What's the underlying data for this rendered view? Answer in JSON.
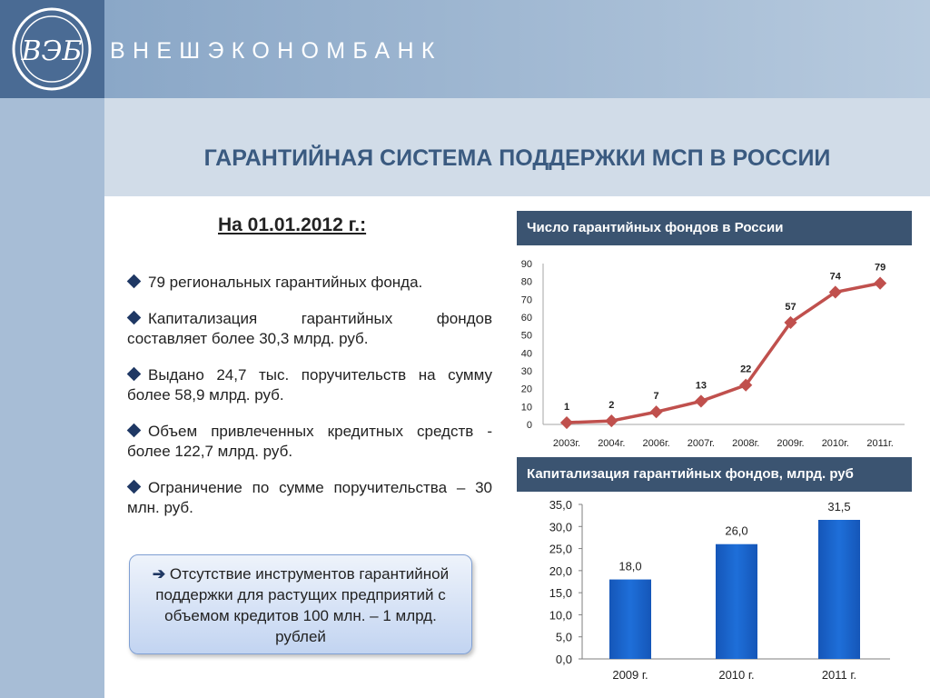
{
  "header": {
    "logo_text": "ВЭБ",
    "bank_name": "ВНЕШЭКОНОМБАНК"
  },
  "title": "ГАРАНТИЙНАЯ СИСТЕМА ПОДДЕРЖКИ МСП В РОССИИ",
  "left": {
    "date_heading": "На 01.01.2012 г.:",
    "bullets": [
      "79 региональных гарантийных фонда.",
      "Капитализация гарантийных фондов составляет более 30,3 млрд. руб.",
      "Выдано 24,7 тыс. поручительств на сумму более 58,9 млрд. руб.",
      "Объем привлеченных кредитных средств - более 122,7 млрд. руб.",
      "Ограничение по сумме поручительства – 30 млн. руб."
    ],
    "callout": {
      "arrow": "➔",
      "text": "Отсутствие инструментов гарантийной поддержки для растущих предприятий с объемом кредитов 100 млн. – 1 млрд. рублей"
    }
  },
  "colors": {
    "line": "#c0504d",
    "bar": "#1e6fd9",
    "header_band": "#3b5471",
    "title": "#3a5a80"
  },
  "chart_data": [
    {
      "type": "line",
      "title": "Число гарантийных фондов в России",
      "categories": [
        "2003г.",
        "2004г.",
        "2006г.",
        "2007г.",
        "2008г.",
        "2009г.",
        "2010г.",
        "2011г."
      ],
      "values": [
        1,
        2,
        7,
        13,
        22,
        57,
        74,
        79
      ],
      "data_labels": [
        "1",
        "2",
        "7",
        "13",
        "22",
        "57",
        "74",
        "79"
      ],
      "y_ticks": [
        "0",
        "10",
        "20",
        "30",
        "40",
        "50",
        "60",
        "70",
        "80",
        "90"
      ],
      "ylim": [
        0,
        90
      ],
      "grid": false,
      "legend": "none"
    },
    {
      "type": "bar",
      "title": "Капитализация гарантийных фондов, млрд. руб",
      "categories": [
        "2009 г.",
        "2010 г.",
        "2011 г."
      ],
      "values": [
        18.0,
        26.0,
        31.5
      ],
      "data_labels": [
        "18,0",
        "26,0",
        "31,5"
      ],
      "y_ticks": [
        "0,0",
        "5,0",
        "10,0",
        "15,0",
        "20,0",
        "25,0",
        "30,0",
        "35,0"
      ],
      "ylim": [
        0,
        35
      ],
      "grid": false,
      "legend": "none"
    }
  ]
}
